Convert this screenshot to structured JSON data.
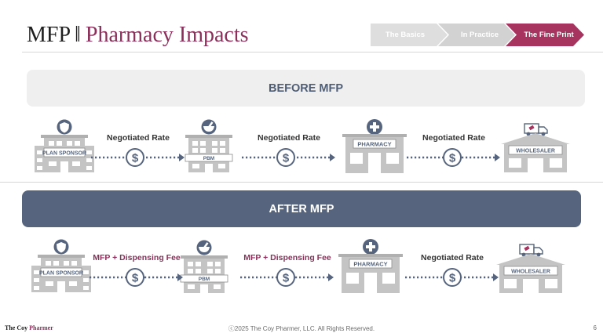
{
  "header": {
    "title_main": "MFP",
    "title_separator": "‖",
    "title_sub": "Pharmacy Impacts"
  },
  "breadcrumb": {
    "items": [
      {
        "label": "The Basics",
        "active": false
      },
      {
        "label": "In Practice",
        "active": false
      },
      {
        "label": "The Fine Print",
        "active": true
      }
    ]
  },
  "sections": {
    "before": {
      "banner": "BEFORE MFP",
      "entities": [
        "PLAN SPONSOR",
        "PBM",
        "PHARMACY",
        "WHOLESALER"
      ],
      "flows": [
        "Negotiated Rate",
        "Negotiated Rate",
        "Negotiated Rate"
      ]
    },
    "after": {
      "banner": "AFTER MFP",
      "entities": [
        "PLAN SPONSOR",
        "PBM",
        "PHARMACY",
        "WHOLESALER"
      ],
      "flows": [
        "MFP + Dispensing Fee",
        "MFP + Dispensing Fee",
        "Negotiated Rate"
      ]
    }
  },
  "footer": {
    "logo_part1": "The Coy",
    "logo_part2": "Pharmer",
    "copyright": "ⓒ2025 The Coy Pharmer, LLC. All Rights Reserved.",
    "page_number": "6"
  },
  "colors": {
    "brand_accent": "#8b2f5a",
    "banner_after": "#56657d",
    "banner_before": "#efefef",
    "icon_gray": "#c4c4c4",
    "icon_slate": "#56657d"
  },
  "icons": {
    "plan_sponsor": "shield-icon",
    "pbm": "mortar-pestle-icon",
    "pharmacy": "medical-cross-icon",
    "wholesaler": "delivery-truck-icon",
    "flow": "dollar-icon"
  }
}
